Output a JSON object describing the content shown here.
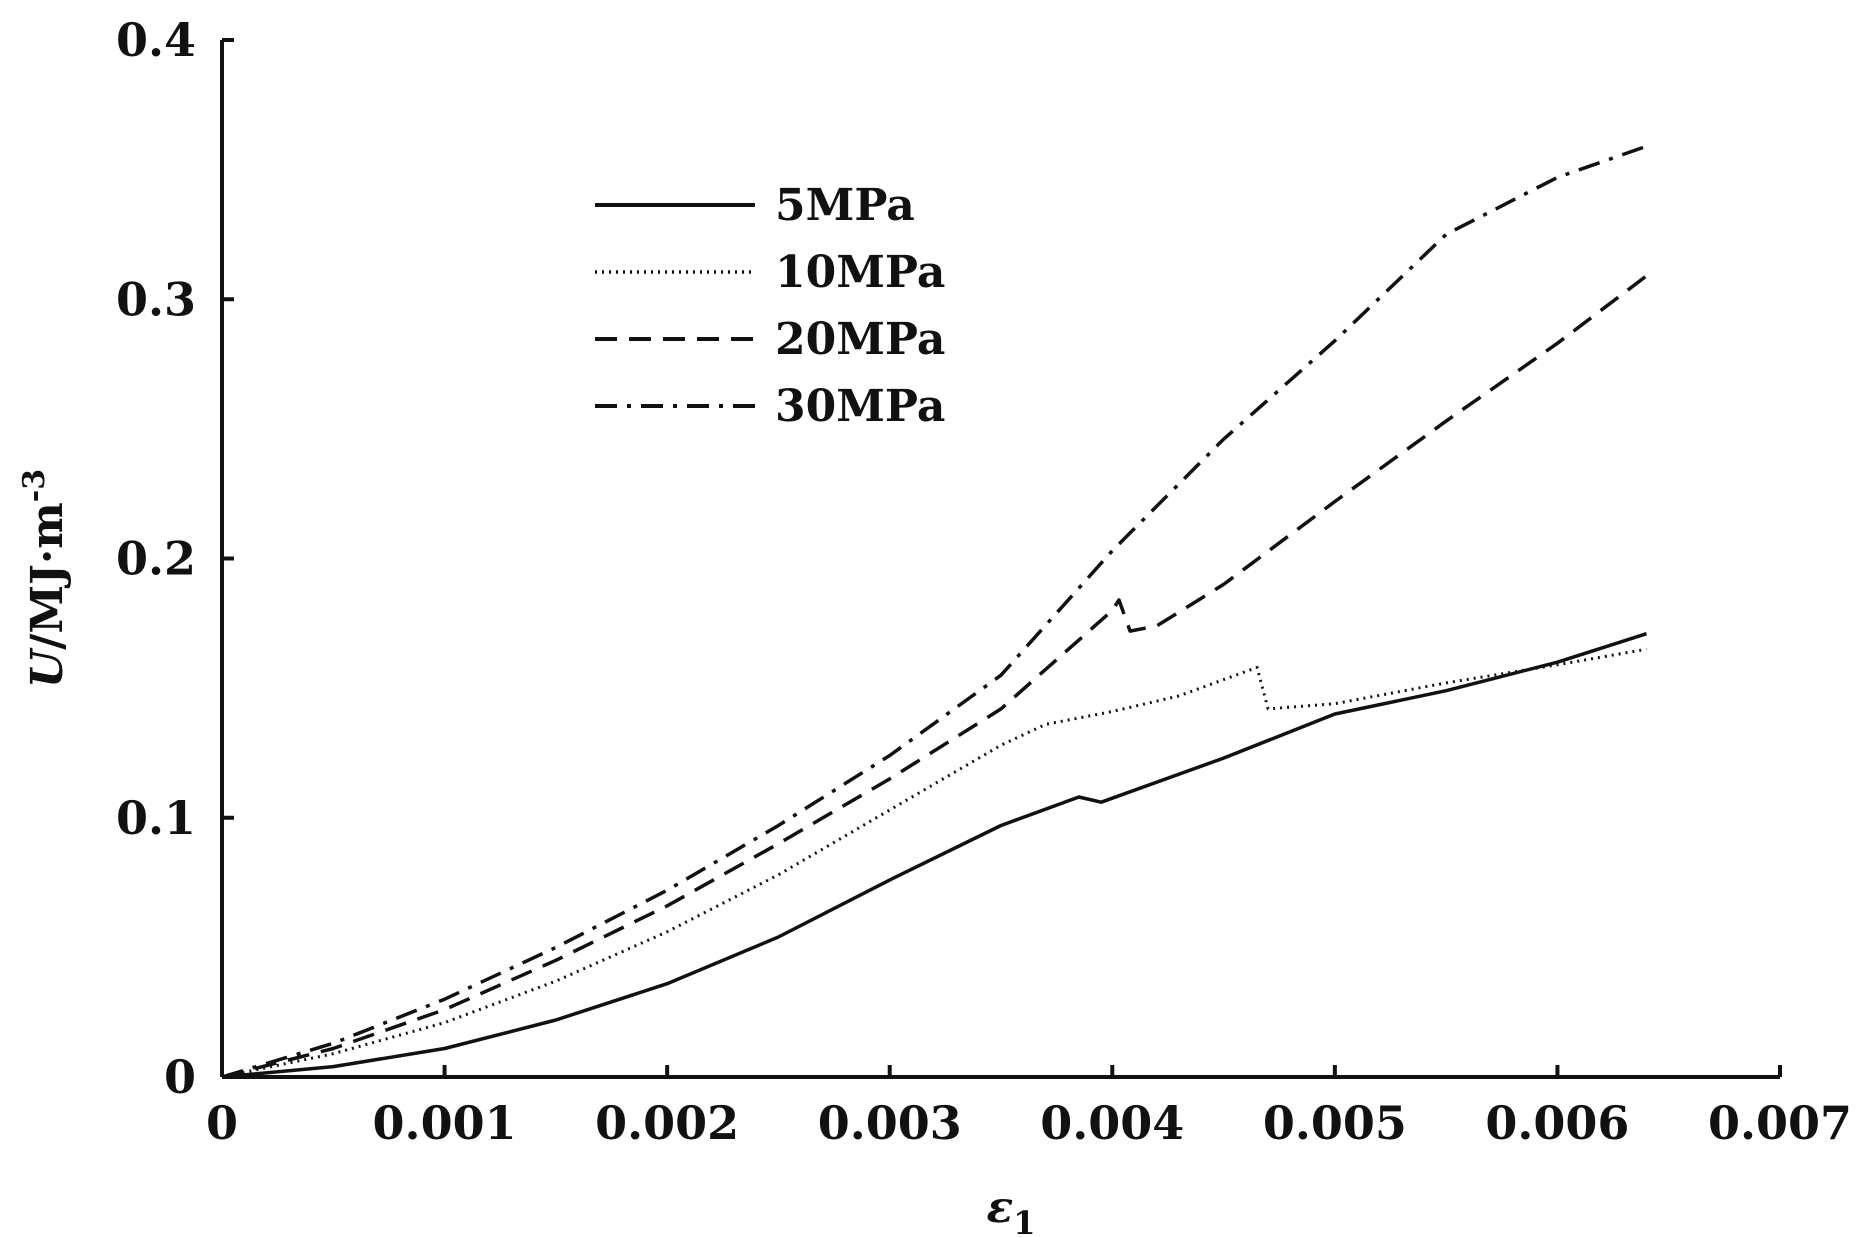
{
  "chart_data": {
    "type": "line",
    "title": "",
    "xlabel": {
      "main": "ε",
      "subscript": "1"
    },
    "ylabel": {
      "main": "U",
      "rest": "/MJ·m",
      "superscript": "-3"
    },
    "xlim": [
      0,
      0.007
    ],
    "ylim": [
      0,
      0.4
    ],
    "xticks": [
      0,
      0.001,
      0.002,
      0.003,
      0.004,
      0.005,
      0.006,
      0.007
    ],
    "xtick_labels": [
      "0",
      "0.001",
      "0.002",
      "0.003",
      "0.004",
      "0.005",
      "0.006",
      "0.007"
    ],
    "yticks": [
      0,
      0.1,
      0.2,
      0.3,
      0.4
    ],
    "ytick_labels": [
      "0",
      "0.1",
      "0.2",
      "0.3",
      "0.4"
    ],
    "grid": false,
    "legend_position": "top-left",
    "series": [
      {
        "name": "5MPa",
        "style": "solid",
        "points": [
          [
            0,
            0
          ],
          [
            0.0005,
            0.004
          ],
          [
            0.001,
            0.011
          ],
          [
            0.0015,
            0.022
          ],
          [
            0.002,
            0.036
          ],
          [
            0.0025,
            0.054
          ],
          [
            0.003,
            0.076
          ],
          [
            0.0035,
            0.097
          ],
          [
            0.00385,
            0.108
          ],
          [
            0.00395,
            0.106
          ],
          [
            0.0045,
            0.123
          ],
          [
            0.005,
            0.14
          ],
          [
            0.0055,
            0.149
          ],
          [
            0.006,
            0.16
          ],
          [
            0.0064,
            0.171
          ]
        ]
      },
      {
        "name": "10MPa",
        "style": "dotted",
        "points": [
          [
            0,
            0
          ],
          [
            0.0005,
            0.009
          ],
          [
            0.001,
            0.021
          ],
          [
            0.0015,
            0.037
          ],
          [
            0.002,
            0.056
          ],
          [
            0.0025,
            0.078
          ],
          [
            0.003,
            0.103
          ],
          [
            0.0035,
            0.128
          ],
          [
            0.0037,
            0.136
          ],
          [
            0.004,
            0.141
          ],
          [
            0.0043,
            0.147
          ],
          [
            0.00465,
            0.158
          ],
          [
            0.0047,
            0.142
          ],
          [
            0.005,
            0.144
          ],
          [
            0.0055,
            0.152
          ],
          [
            0.006,
            0.159
          ],
          [
            0.0064,
            0.165
          ]
        ]
      },
      {
        "name": "20MPa",
        "style": "dashed",
        "points": [
          [
            0,
            0
          ],
          [
            0.0005,
            0.011
          ],
          [
            0.001,
            0.026
          ],
          [
            0.0015,
            0.045
          ],
          [
            0.002,
            0.066
          ],
          [
            0.0025,
            0.09
          ],
          [
            0.003,
            0.115
          ],
          [
            0.0035,
            0.142
          ],
          [
            0.004,
            0.18
          ],
          [
            0.00403,
            0.184
          ],
          [
            0.00408,
            0.172
          ],
          [
            0.0042,
            0.174
          ],
          [
            0.0045,
            0.19
          ],
          [
            0.005,
            0.222
          ],
          [
            0.0055,
            0.253
          ],
          [
            0.006,
            0.283
          ],
          [
            0.0064,
            0.309
          ]
        ]
      },
      {
        "name": "30MPa",
        "style": "dashdot",
        "points": [
          [
            0,
            0
          ],
          [
            0.0005,
            0.013
          ],
          [
            0.001,
            0.03
          ],
          [
            0.0015,
            0.05
          ],
          [
            0.002,
            0.072
          ],
          [
            0.0025,
            0.097
          ],
          [
            0.003,
            0.124
          ],
          [
            0.0035,
            0.155
          ],
          [
            0.004,
            0.203
          ],
          [
            0.0045,
            0.246
          ],
          [
            0.005,
            0.284
          ],
          [
            0.0055,
            0.325
          ],
          [
            0.006,
            0.347
          ],
          [
            0.0064,
            0.359
          ]
        ]
      }
    ]
  }
}
